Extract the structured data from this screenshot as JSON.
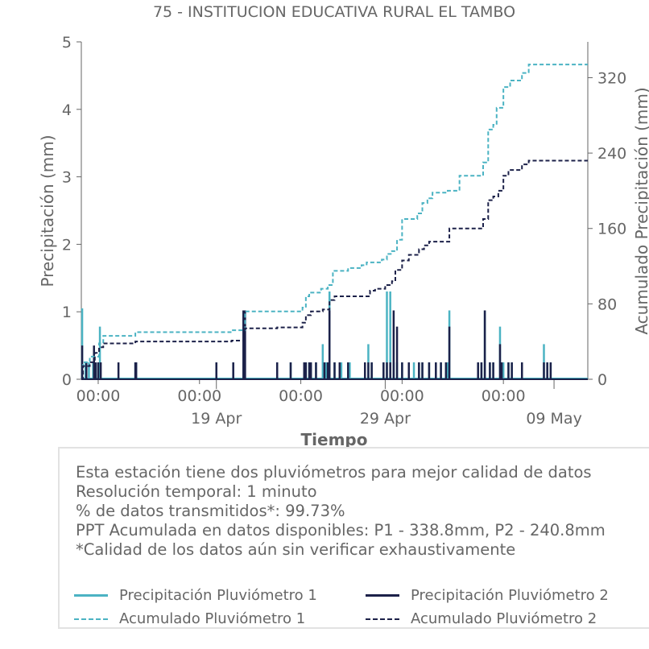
{
  "chart_data": {
    "type": "bar+line",
    "title": "75 - INSTITUCION EDUCATIVA RURAL EL TAMBO",
    "xlabel": "Tiempo",
    "ylabel_left": "Precipitación (mm)",
    "ylabel_right": "Acumulado Precipitación (mm)",
    "ylim_left": [
      0,
      5
    ],
    "ylim_right": [
      0,
      358
    ],
    "yticks_left": [
      "0",
      "1",
      "2",
      "3",
      "4",
      "5"
    ],
    "yticks_right": [
      "0",
      "80",
      "160",
      "240",
      "320"
    ],
    "xlim_days": [
      0,
      30
    ],
    "xticks_time": [
      {
        "day": 1,
        "label": "00:00"
      },
      {
        "day": 7,
        "label": "00:00"
      },
      {
        "day": 13,
        "label": "00:00"
      },
      {
        "day": 19,
        "label": "00:00"
      },
      {
        "day": 25,
        "label": "00:00"
      }
    ],
    "xticks_date": [
      {
        "day": 8,
        "label": "19 Apr"
      },
      {
        "day": 18,
        "label": "29 Apr"
      },
      {
        "day": 28,
        "label": "09 May"
      }
    ],
    "grid": false,
    "colors": {
      "p1": "#4bb3c3",
      "p2": "#1c2149"
    },
    "series": [
      {
        "name": "Precipitación Pluviómetro 1",
        "style": "bars",
        "x": [
          0.05,
          0.25,
          0.45,
          0.7,
          0.8,
          1.0,
          1.1,
          3.2,
          3.25,
          8.0,
          9.0,
          9.6,
          11.6,
          12.4,
          13.2,
          13.3,
          13.5,
          13.6,
          13.9,
          14.3,
          14.5,
          14.6,
          14.7,
          15.0,
          15.4,
          15.9,
          16.8,
          17.0,
          17.2,
          17.9,
          18.1,
          18.3,
          18.5,
          18.7,
          19.0,
          19.7,
          20.0,
          20.2,
          20.6,
          21.0,
          21.3,
          21.6,
          21.7,
          21.8,
          23.5,
          23.7,
          23.9,
          24.2,
          24.4,
          24.8,
          24.9,
          25.0,
          25.3,
          25.5,
          26.1,
          27.4,
          27.6,
          27.8
        ],
        "values": [
          1.05,
          0.25,
          0.25,
          0.25,
          0.25,
          0.25,
          0.78,
          0.25,
          0.25,
          0.25,
          0.25,
          0.25,
          0.25,
          0.25,
          0.25,
          0.25,
          0.25,
          0.25,
          0.25,
          0.52,
          0.25,
          0.25,
          1.3,
          0.25,
          0.25,
          0.25,
          0.25,
          0.52,
          0.25,
          0.25,
          1.3,
          1.3,
          0.25,
          0.25,
          0.25,
          0.25,
          0.25,
          0.25,
          0.25,
          0.25,
          0.25,
          0.25,
          0.25,
          1.02,
          0.25,
          0.25,
          1.02,
          0.25,
          0.25,
          0.78,
          0.25,
          0.25,
          0.25,
          0.25,
          0.25,
          0.52,
          0.25,
          0.25
        ]
      },
      {
        "name": "Precipitación Pluviómetro 2",
        "style": "bars",
        "x": [
          0.05,
          0.3,
          0.75,
          0.85,
          1.0,
          1.15,
          2.2,
          3.2,
          3.25,
          8.0,
          9.0,
          9.6,
          9.7,
          11.6,
          12.4,
          13.2,
          13.3,
          13.5,
          13.6,
          13.9,
          14.4,
          14.6,
          14.7,
          15.0,
          15.3,
          15.8,
          16.8,
          17.0,
          17.2,
          17.9,
          18.1,
          18.3,
          18.5,
          18.7,
          19.0,
          19.4,
          20.0,
          20.2,
          20.6,
          21.0,
          21.3,
          21.6,
          21.8,
          23.5,
          23.7,
          23.9,
          24.2,
          24.4,
          24.8,
          24.9,
          25.3,
          25.5,
          26.1,
          27.4,
          27.6,
          27.8
        ],
        "values": [
          0.5,
          0.25,
          0.5,
          0.25,
          0.25,
          0.25,
          0.25,
          0.25,
          0.25,
          0.25,
          0.25,
          1.02,
          1.02,
          0.25,
          0.25,
          0.25,
          0.25,
          0.25,
          0.25,
          0.25,
          0.25,
          0.25,
          1.02,
          0.25,
          0.25,
          0.25,
          0.25,
          0.25,
          0.25,
          0.25,
          0.25,
          0.25,
          1.02,
          0.78,
          0.25,
          0.25,
          0.25,
          0.25,
          0.25,
          0.25,
          0.25,
          0.25,
          0.78,
          0.25,
          0.25,
          1.02,
          0.25,
          0.25,
          0.52,
          0.25,
          0.25,
          0.25,
          0.25,
          0.25,
          0.25,
          0.25
        ]
      },
      {
        "name": "Acumulado Pluviómetro 1",
        "style": "dashed-step",
        "x": [
          0,
          0.1,
          0.5,
          1.05,
          1.3,
          3.2,
          6.4,
          8.9,
          9.7,
          11.7,
          13.1,
          13.3,
          13.5,
          14.2,
          14.6,
          14.9,
          15.8,
          16.6,
          16.9,
          17.8,
          18.1,
          18.4,
          18.7,
          19.0,
          19.9,
          20.2,
          20.5,
          20.8,
          21.2,
          21.7,
          22.4,
          23.6,
          23.8,
          24.1,
          24.4,
          24.6,
          25.0,
          25.4,
          26.1,
          26.5,
          30
        ],
        "values": [
          0,
          18,
          24,
          38,
          46,
          50,
          50,
          52,
          72,
          72,
          76,
          88,
          92,
          96,
          100,
          115,
          118,
          121,
          124,
          127,
          133,
          136,
          148,
          170,
          176,
          187,
          192,
          198,
          198,
          200,
          216,
          216,
          230,
          265,
          270,
          288,
          310,
          317,
          325,
          334,
          334
        ]
      },
      {
        "name": "Acumulado Pluviómetro 2",
        "style": "dashed-step",
        "x": [
          0,
          0.1,
          0.5,
          0.8,
          1.05,
          1.3,
          3.2,
          6.4,
          8.9,
          9.7,
          11.6,
          13.1,
          13.3,
          13.6,
          14.3,
          14.7,
          15.0,
          16.8,
          17.1,
          17.4,
          18.0,
          18.4,
          18.6,
          19.0,
          19.4,
          20.0,
          20.3,
          20.6,
          21.0,
          21.8,
          23.5,
          23.8,
          24.1,
          24.4,
          24.7,
          25.0,
          25.3,
          26.1,
          26.5,
          30
        ],
        "values": [
          0,
          14,
          18,
          28,
          34,
          38,
          40,
          40,
          41,
          54,
          55,
          60,
          68,
          72,
          74,
          84,
          88,
          88,
          94,
          96,
          100,
          104,
          116,
          126,
          132,
          138,
          142,
          146,
          146,
          160,
          160,
          170,
          190,
          194,
          200,
          216,
          222,
          228,
          232,
          232
        ]
      }
    ]
  },
  "info": {
    "lines": [
      "Esta estación tiene dos pluviómetros para mejor calidad de datos",
      "Resolución temporal: 1 minuto",
      "% de datos transmitidos*: 99.73%",
      "PPT Acumulada en datos disponibles: P1 - 338.8mm, P2 - 240.8mm",
      "*Calidad de los datos aún sin verificar exhaustivamente"
    ]
  },
  "legend": {
    "items": [
      {
        "label": "Precipitación Pluviómetro 1",
        "color": "#4bb3c3",
        "style": "solid"
      },
      {
        "label": "Precipitación Pluviómetro 2",
        "color": "#1c2149",
        "style": "solid"
      },
      {
        "label": "Acumulado Pluviómetro 1",
        "color": "#4bb3c3",
        "style": "dashed"
      },
      {
        "label": "Acumulado Pluviómetro 2",
        "color": "#1c2149",
        "style": "dashed"
      }
    ]
  }
}
